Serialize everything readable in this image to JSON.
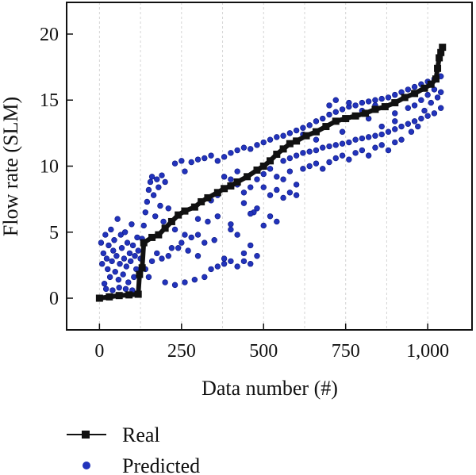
{
  "chart_data": {
    "type": "scatter",
    "xlabel": "Data number (#)",
    "ylabel": "Flow rate (SLM)",
    "xlim": [
      -100,
      1135
    ],
    "ylim": [
      -2.4,
      22.4
    ],
    "x_ticks": [
      0,
      250,
      500,
      750,
      1000
    ],
    "x_tick_labels": [
      "0",
      "250",
      "500",
      "750",
      "1,000"
    ],
    "y_ticks": [
      0,
      5,
      10,
      15,
      20
    ],
    "y_tick_labels": [
      "0",
      "5",
      "10",
      "15",
      "20"
    ],
    "grid": "vertical dashed",
    "legend_position": "below plot, left",
    "series": [
      {
        "name": "Real",
        "style": "line with square markers",
        "color": "#111111",
        "points": [
          [
            0,
            0.0
          ],
          [
            30,
            0.1
          ],
          [
            60,
            0.2
          ],
          [
            90,
            0.25
          ],
          [
            118,
            0.3
          ],
          [
            122,
            1.8
          ],
          [
            130,
            2.3
          ],
          [
            135,
            4.2
          ],
          [
            160,
            4.6
          ],
          [
            180,
            4.8
          ],
          [
            200,
            5.3
          ],
          [
            220,
            5.8
          ],
          [
            240,
            6.3
          ],
          [
            260,
            6.6
          ],
          [
            290,
            6.9
          ],
          [
            310,
            7.3
          ],
          [
            330,
            7.6
          ],
          [
            360,
            8.0
          ],
          [
            380,
            8.3
          ],
          [
            400,
            8.5
          ],
          [
            420,
            8.8
          ],
          [
            450,
            9.2
          ],
          [
            480,
            9.7
          ],
          [
            500,
            10.0
          ],
          [
            520,
            10.4
          ],
          [
            540,
            10.9
          ],
          [
            560,
            11.3
          ],
          [
            580,
            11.7
          ],
          [
            600,
            11.9
          ],
          [
            630,
            12.3
          ],
          [
            660,
            12.6
          ],
          [
            690,
            13.0
          ],
          [
            720,
            13.4
          ],
          [
            750,
            13.6
          ],
          [
            780,
            13.8
          ],
          [
            810,
            14.0
          ],
          [
            840,
            14.3
          ],
          [
            870,
            14.5
          ],
          [
            900,
            14.8
          ],
          [
            930,
            15.2
          ],
          [
            960,
            15.5
          ],
          [
            990,
            15.9
          ],
          [
            1010,
            16.2
          ],
          [
            1025,
            16.6
          ],
          [
            1030,
            17.4
          ],
          [
            1035,
            18.2
          ],
          [
            1040,
            18.6
          ],
          [
            1045,
            19.0
          ]
        ]
      },
      {
        "name": "Predicted",
        "style": "scatter",
        "color": "#2233bb",
        "points": [
          [
            5,
            4.2
          ],
          [
            8,
            2.6
          ],
          [
            12,
            3.4
          ],
          [
            15,
            1.1
          ],
          [
            18,
            4.8
          ],
          [
            22,
            3.0
          ],
          [
            25,
            2.2
          ],
          [
            28,
            4.0
          ],
          [
            32,
            1.6
          ],
          [
            35,
            5.2
          ],
          [
            38,
            2.8
          ],
          [
            42,
            3.6
          ],
          [
            45,
            4.4
          ],
          [
            48,
            2.0
          ],
          [
            52,
            3.2
          ],
          [
            55,
            6.0
          ],
          [
            58,
            1.4
          ],
          [
            62,
            2.6
          ],
          [
            65,
            4.8
          ],
          [
            68,
            3.8
          ],
          [
            72,
            1.8
          ],
          [
            75,
            3.0
          ],
          [
            78,
            5.0
          ],
          [
            82,
            2.4
          ],
          [
            85,
            4.2
          ],
          [
            88,
            1.2
          ],
          [
            92,
            3.4
          ],
          [
            95,
            2.8
          ],
          [
            98,
            5.6
          ],
          [
            102,
            4.0
          ],
          [
            105,
            1.6
          ],
          [
            108,
            3.2
          ],
          [
            112,
            2.2
          ],
          [
            115,
            4.6
          ],
          [
            118,
            3.6
          ],
          [
            20,
            0.7
          ],
          [
            40,
            0.6
          ],
          [
            60,
            0.8
          ],
          [
            80,
            0.7
          ],
          [
            100,
            0.6
          ],
          [
            125,
            3.0
          ],
          [
            130,
            4.5
          ],
          [
            135,
            5.5
          ],
          [
            140,
            6.5
          ],
          [
            145,
            7.3
          ],
          [
            150,
            8.2
          ],
          [
            155,
            8.8
          ],
          [
            160,
            9.2
          ],
          [
            165,
            7.8
          ],
          [
            170,
            6.2
          ],
          [
            175,
            9.0
          ],
          [
            180,
            8.4
          ],
          [
            185,
            7.0
          ],
          [
            190,
            9.3
          ],
          [
            195,
            5.8
          ],
          [
            200,
            8.8
          ],
          [
            140,
            2.2
          ],
          [
            150,
            1.6
          ],
          [
            160,
            2.8
          ],
          [
            175,
            3.4
          ],
          [
            190,
            3.0
          ],
          [
            200,
            1.2
          ],
          [
            210,
            3.2
          ],
          [
            220,
            3.8
          ],
          [
            230,
            1.0
          ],
          [
            240,
            3.8
          ],
          [
            250,
            4.2
          ],
          [
            260,
            1.2
          ],
          [
            270,
            3.6
          ],
          [
            280,
            4.6
          ],
          [
            290,
            1.4
          ],
          [
            300,
            4.8
          ],
          [
            320,
            1.6
          ],
          [
            340,
            2.2
          ],
          [
            360,
            2.4
          ],
          [
            380,
            2.6
          ],
          [
            400,
            2.8
          ],
          [
            420,
            2.4
          ],
          [
            440,
            2.8
          ],
          [
            460,
            2.6
          ],
          [
            480,
            3.2
          ],
          [
            380,
            3.0
          ],
          [
            400,
            5.2
          ],
          [
            420,
            4.8
          ],
          [
            440,
            3.4
          ],
          [
            460,
            4.0
          ],
          [
            470,
            6.5
          ],
          [
            500,
            5.5
          ],
          [
            520,
            6.2
          ],
          [
            540,
            5.8
          ],
          [
            230,
            10.2
          ],
          [
            250,
            10.4
          ],
          [
            260,
            9.6
          ],
          [
            280,
            10.3
          ],
          [
            300,
            10.5
          ],
          [
            320,
            10.6
          ],
          [
            340,
            10.8
          ],
          [
            360,
            10.4
          ],
          [
            380,
            10.7
          ],
          [
            400,
            11.0
          ],
          [
            420,
            11.2
          ],
          [
            440,
            11.4
          ],
          [
            460,
            11.3
          ],
          [
            480,
            11.6
          ],
          [
            500,
            11.8
          ],
          [
            520,
            12.0
          ],
          [
            540,
            12.2
          ],
          [
            560,
            12.3
          ],
          [
            580,
            12.5
          ],
          [
            600,
            12.7
          ],
          [
            620,
            12.9
          ],
          [
            640,
            13.1
          ],
          [
            660,
            13.4
          ],
          [
            680,
            13.6
          ],
          [
            700,
            13.9
          ],
          [
            720,
            14.1
          ],
          [
            740,
            14.3
          ],
          [
            760,
            14.5
          ],
          [
            780,
            14.6
          ],
          [
            800,
            14.8
          ],
          [
            820,
            14.9
          ],
          [
            840,
            15.0
          ],
          [
            860,
            15.1
          ],
          [
            880,
            15.2
          ],
          [
            900,
            15.4
          ],
          [
            920,
            15.6
          ],
          [
            940,
            15.8
          ],
          [
            960,
            16.0
          ],
          [
            980,
            16.2
          ],
          [
            1000,
            16.4
          ],
          [
            1020,
            16.6
          ],
          [
            1040,
            16.8
          ],
          [
            700,
            14.6
          ],
          [
            720,
            15.0
          ],
          [
            760,
            14.8
          ],
          [
            800,
            14.2
          ],
          [
            840,
            14.6
          ],
          [
            900,
            14.0
          ],
          [
            940,
            14.4
          ],
          [
            980,
            15.0
          ],
          [
            560,
            10.4
          ],
          [
            580,
            10.6
          ],
          [
            600,
            10.8
          ],
          [
            620,
            11.0
          ],
          [
            640,
            11.1
          ],
          [
            660,
            11.2
          ],
          [
            680,
            11.4
          ],
          [
            700,
            11.5
          ],
          [
            720,
            11.6
          ],
          [
            740,
            11.7
          ],
          [
            760,
            11.8
          ],
          [
            780,
            12.0
          ],
          [
            800,
            12.1
          ],
          [
            820,
            12.2
          ],
          [
            840,
            12.3
          ],
          [
            860,
            12.4
          ],
          [
            880,
            12.6
          ],
          [
            900,
            12.8
          ],
          [
            920,
            13.0
          ],
          [
            940,
            13.2
          ],
          [
            960,
            13.4
          ],
          [
            980,
            13.6
          ],
          [
            1000,
            13.8
          ],
          [
            1020,
            14.0
          ],
          [
            1040,
            14.4
          ],
          [
            1030,
            15.2
          ],
          [
            1010,
            14.8
          ],
          [
            990,
            14.2
          ],
          [
            970,
            13.0
          ],
          [
            950,
            12.6
          ],
          [
            540,
            9.2
          ],
          [
            560,
            9.0
          ],
          [
            580,
            9.6
          ],
          [
            600,
            8.6
          ],
          [
            620,
            9.8
          ],
          [
            640,
            10.0
          ],
          [
            660,
            10.2
          ],
          [
            680,
            9.8
          ],
          [
            700,
            10.3
          ],
          [
            720,
            10.6
          ],
          [
            740,
            10.8
          ],
          [
            760,
            10.5
          ],
          [
            780,
            11.0
          ],
          [
            800,
            11.2
          ],
          [
            820,
            10.8
          ],
          [
            840,
            11.4
          ],
          [
            860,
            11.6
          ],
          [
            880,
            11.2
          ],
          [
            900,
            11.8
          ],
          [
            920,
            12.0
          ],
          [
            380,
            9.2
          ],
          [
            400,
            9.0
          ],
          [
            420,
            8.6
          ],
          [
            440,
            8.0
          ],
          [
            460,
            8.4
          ],
          [
            480,
            9.0
          ],
          [
            500,
            8.4
          ],
          [
            520,
            7.8
          ],
          [
            540,
            8.2
          ],
          [
            560,
            7.6
          ],
          [
            580,
            8.0
          ],
          [
            600,
            7.8
          ],
          [
            440,
            7.2
          ],
          [
            460,
            6.4
          ],
          [
            480,
            6.8
          ],
          [
            340,
            7.4
          ],
          [
            360,
            7.8
          ],
          [
            420,
            9.6
          ],
          [
            500,
            9.4
          ],
          [
            520,
            9.8
          ],
          [
            210,
            6.8
          ],
          [
            230,
            5.2
          ],
          [
            260,
            4.8
          ],
          [
            300,
            6.0
          ],
          [
            330,
            5.8
          ],
          [
            360,
            6.2
          ],
          [
            400,
            5.6
          ],
          [
            300,
            3.2
          ],
          [
            320,
            4.2
          ],
          [
            350,
            4.4
          ],
          [
            660,
            12.0
          ],
          [
            740,
            12.6
          ],
          [
            820,
            13.6
          ],
          [
            860,
            13.0
          ],
          [
            900,
            13.4
          ],
          [
            960,
            14.6
          ],
          [
            1000,
            15.4
          ],
          [
            1040,
            15.6
          ],
          [
            1020,
            15.8
          ],
          [
            620,
            12.4
          ]
        ]
      }
    ]
  }
}
